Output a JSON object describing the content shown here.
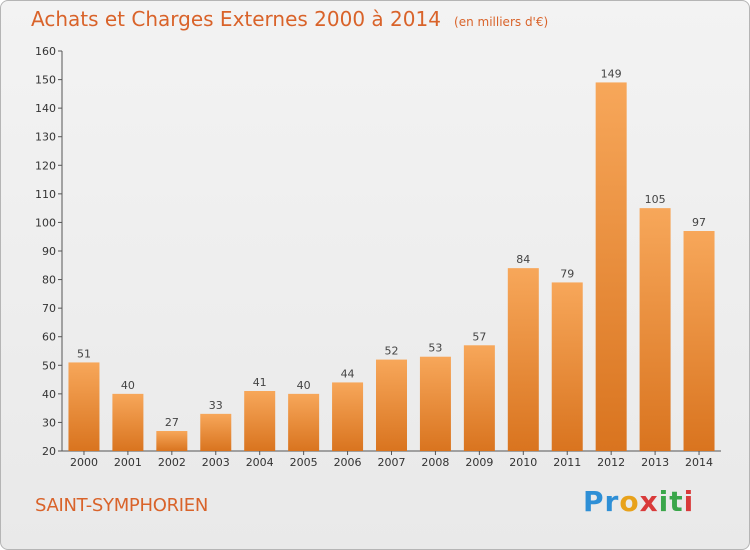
{
  "header": {
    "title": "Achats et Charges Externes 2000 à 2014",
    "subtitle": "(en milliers d'€)"
  },
  "footer": {
    "place": "SAINT-SYMPHORIEN",
    "logo_text": "Proxiti"
  },
  "colors": {
    "accent": "#d9632a",
    "bar_light": "#f7a75a",
    "bar_dark": "#d9741f"
  },
  "chart_data": {
    "type": "bar",
    "title": "Achats et Charges Externes 2000 à 2014",
    "subtitle": "(en milliers d'€)",
    "categories": [
      "2000",
      "2001",
      "2002",
      "2003",
      "2004",
      "2005",
      "2006",
      "2007",
      "2008",
      "2009",
      "2010",
      "2011",
      "2012",
      "2013",
      "2014"
    ],
    "values": [
      51,
      40,
      27,
      33,
      41,
      40,
      44,
      52,
      53,
      57,
      84,
      79,
      149,
      105,
      97
    ],
    "ylim": [
      20,
      160
    ],
    "yticks": [
      20,
      30,
      40,
      50,
      60,
      70,
      80,
      90,
      100,
      110,
      120,
      130,
      140,
      150,
      160
    ],
    "grid": false,
    "data_labels": true
  }
}
